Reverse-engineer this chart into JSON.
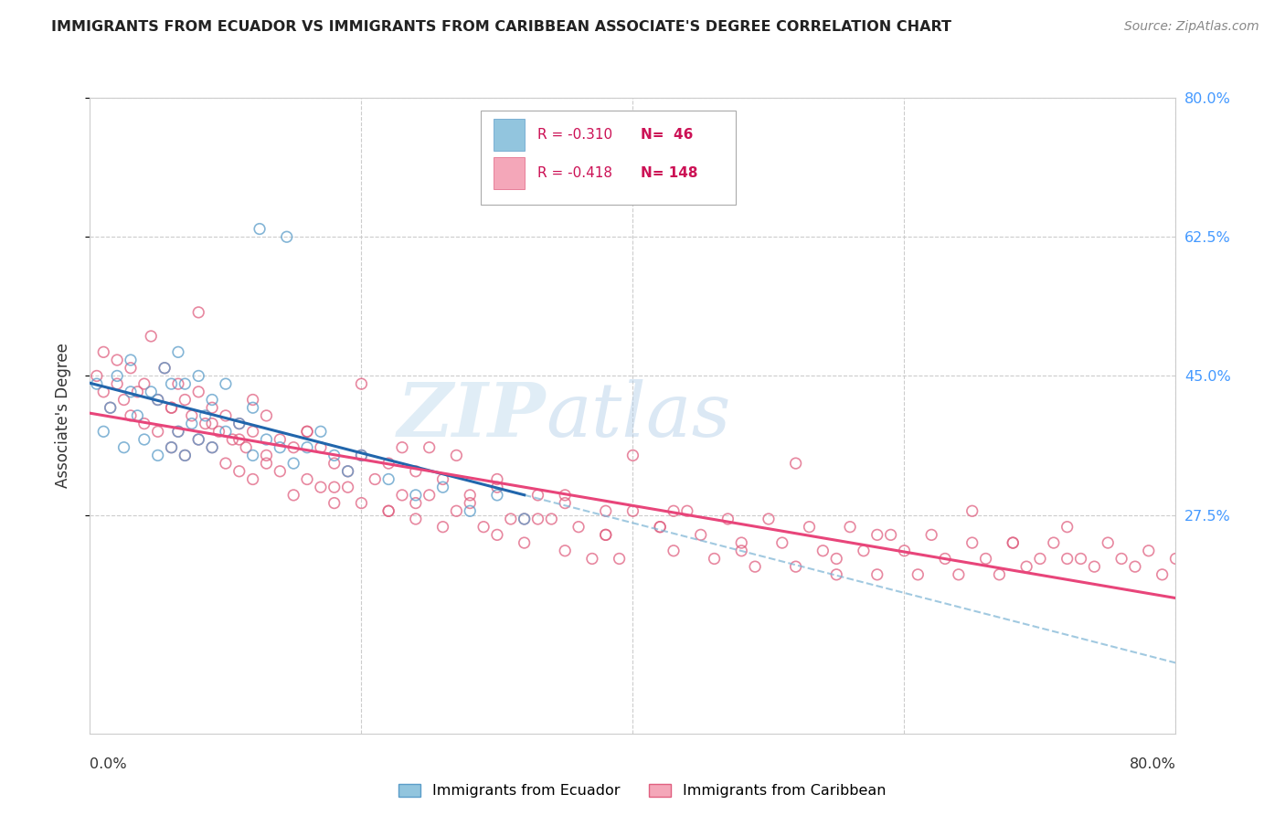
{
  "title": "IMMIGRANTS FROM ECUADOR VS IMMIGRANTS FROM CARIBBEAN ASSOCIATE'S DEGREE CORRELATION CHART",
  "source": "Source: ZipAtlas.com",
  "ylabel": "Associate's Degree",
  "y_tick_positions": [
    0.275,
    0.45,
    0.625,
    0.8
  ],
  "y_tick_labels": [
    "27.5%",
    "45.0%",
    "62.5%",
    "80.0%"
  ],
  "xlim": [
    0.0,
    0.8
  ],
  "ylim": [
    0.0,
    0.8
  ],
  "ecuador_R": -0.31,
  "ecuador_N": 46,
  "caribbean_R": -0.418,
  "caribbean_N": 148,
  "ecuador_color": "#92c5de",
  "ecuador_edge_color": "#5b9dc9",
  "caribbean_color": "#f4a7b9",
  "caribbean_edge_color": "#e06080",
  "ecuador_line_color": "#2166ac",
  "caribbean_line_color": "#e8457a",
  "ecuador_dash_color": "#7ab3d4",
  "right_axis_color": "#4499ff",
  "watermark_color": "#ddeeff",
  "legend_label_ecuador": "Immigrants from Ecuador",
  "legend_label_caribbean": "Immigrants from Caribbean",
  "ecuador_x": [
    0.005,
    0.01,
    0.015,
    0.02,
    0.025,
    0.03,
    0.03,
    0.035,
    0.04,
    0.045,
    0.05,
    0.05,
    0.055,
    0.06,
    0.06,
    0.065,
    0.065,
    0.07,
    0.07,
    0.075,
    0.08,
    0.08,
    0.085,
    0.09,
    0.09,
    0.1,
    0.1,
    0.11,
    0.12,
    0.12,
    0.13,
    0.14,
    0.15,
    0.16,
    0.17,
    0.18,
    0.19,
    0.2,
    0.22,
    0.24,
    0.26,
    0.28,
    0.3,
    0.32,
    0.125,
    0.145
  ],
  "ecuador_y": [
    0.44,
    0.38,
    0.41,
    0.45,
    0.36,
    0.43,
    0.47,
    0.4,
    0.37,
    0.43,
    0.35,
    0.42,
    0.46,
    0.36,
    0.44,
    0.38,
    0.48,
    0.35,
    0.44,
    0.39,
    0.37,
    0.45,
    0.4,
    0.36,
    0.42,
    0.38,
    0.44,
    0.39,
    0.35,
    0.41,
    0.37,
    0.36,
    0.34,
    0.36,
    0.38,
    0.35,
    0.33,
    0.35,
    0.32,
    0.3,
    0.31,
    0.28,
    0.3,
    0.27,
    0.635,
    0.625
  ],
  "caribbean_x": [
    0.005,
    0.01,
    0.01,
    0.015,
    0.02,
    0.02,
    0.025,
    0.03,
    0.03,
    0.035,
    0.04,
    0.04,
    0.045,
    0.05,
    0.05,
    0.055,
    0.06,
    0.06,
    0.065,
    0.065,
    0.07,
    0.07,
    0.075,
    0.08,
    0.08,
    0.085,
    0.09,
    0.09,
    0.095,
    0.1,
    0.1,
    0.105,
    0.11,
    0.11,
    0.115,
    0.12,
    0.12,
    0.13,
    0.13,
    0.14,
    0.14,
    0.15,
    0.15,
    0.16,
    0.16,
    0.17,
    0.17,
    0.18,
    0.18,
    0.19,
    0.2,
    0.2,
    0.21,
    0.22,
    0.22,
    0.23,
    0.23,
    0.24,
    0.24,
    0.25,
    0.26,
    0.26,
    0.27,
    0.27,
    0.28,
    0.29,
    0.3,
    0.3,
    0.31,
    0.32,
    0.33,
    0.34,
    0.35,
    0.35,
    0.36,
    0.37,
    0.38,
    0.38,
    0.39,
    0.4,
    0.4,
    0.42,
    0.43,
    0.44,
    0.45,
    0.46,
    0.47,
    0.48,
    0.49,
    0.5,
    0.51,
    0.52,
    0.53,
    0.54,
    0.55,
    0.56,
    0.57,
    0.58,
    0.59,
    0.6,
    0.61,
    0.62,
    0.63,
    0.64,
    0.65,
    0.66,
    0.67,
    0.68,
    0.69,
    0.7,
    0.71,
    0.72,
    0.73,
    0.74,
    0.75,
    0.76,
    0.77,
    0.78,
    0.79,
    0.8,
    0.08,
    0.12,
    0.16,
    0.2,
    0.25,
    0.3,
    0.35,
    0.52,
    0.65,
    0.72,
    0.09,
    0.13,
    0.18,
    0.22,
    0.28,
    0.33,
    0.38,
    0.43,
    0.55,
    0.68,
    0.06,
    0.11,
    0.19,
    0.24,
    0.32,
    0.42,
    0.48,
    0.58
  ],
  "caribbean_y": [
    0.45,
    0.43,
    0.48,
    0.41,
    0.44,
    0.47,
    0.42,
    0.4,
    0.46,
    0.43,
    0.39,
    0.44,
    0.5,
    0.38,
    0.42,
    0.46,
    0.36,
    0.41,
    0.38,
    0.44,
    0.35,
    0.42,
    0.4,
    0.37,
    0.43,
    0.39,
    0.36,
    0.41,
    0.38,
    0.34,
    0.4,
    0.37,
    0.33,
    0.39,
    0.36,
    0.32,
    0.38,
    0.35,
    0.4,
    0.33,
    0.37,
    0.3,
    0.36,
    0.32,
    0.38,
    0.31,
    0.36,
    0.29,
    0.34,
    0.31,
    0.29,
    0.35,
    0.32,
    0.28,
    0.34,
    0.3,
    0.36,
    0.27,
    0.33,
    0.3,
    0.26,
    0.32,
    0.28,
    0.35,
    0.29,
    0.26,
    0.25,
    0.31,
    0.27,
    0.24,
    0.3,
    0.27,
    0.23,
    0.29,
    0.26,
    0.22,
    0.28,
    0.25,
    0.22,
    0.28,
    0.35,
    0.26,
    0.23,
    0.28,
    0.25,
    0.22,
    0.27,
    0.24,
    0.21,
    0.27,
    0.24,
    0.21,
    0.26,
    0.23,
    0.2,
    0.26,
    0.23,
    0.2,
    0.25,
    0.23,
    0.2,
    0.25,
    0.22,
    0.2,
    0.24,
    0.22,
    0.2,
    0.24,
    0.21,
    0.22,
    0.24,
    0.22,
    0.22,
    0.21,
    0.24,
    0.22,
    0.21,
    0.23,
    0.2,
    0.22,
    0.53,
    0.42,
    0.38,
    0.44,
    0.36,
    0.32,
    0.3,
    0.34,
    0.28,
    0.26,
    0.39,
    0.34,
    0.31,
    0.28,
    0.3,
    0.27,
    0.25,
    0.28,
    0.22,
    0.24,
    0.41,
    0.37,
    0.33,
    0.29,
    0.27,
    0.26,
    0.23,
    0.25
  ]
}
